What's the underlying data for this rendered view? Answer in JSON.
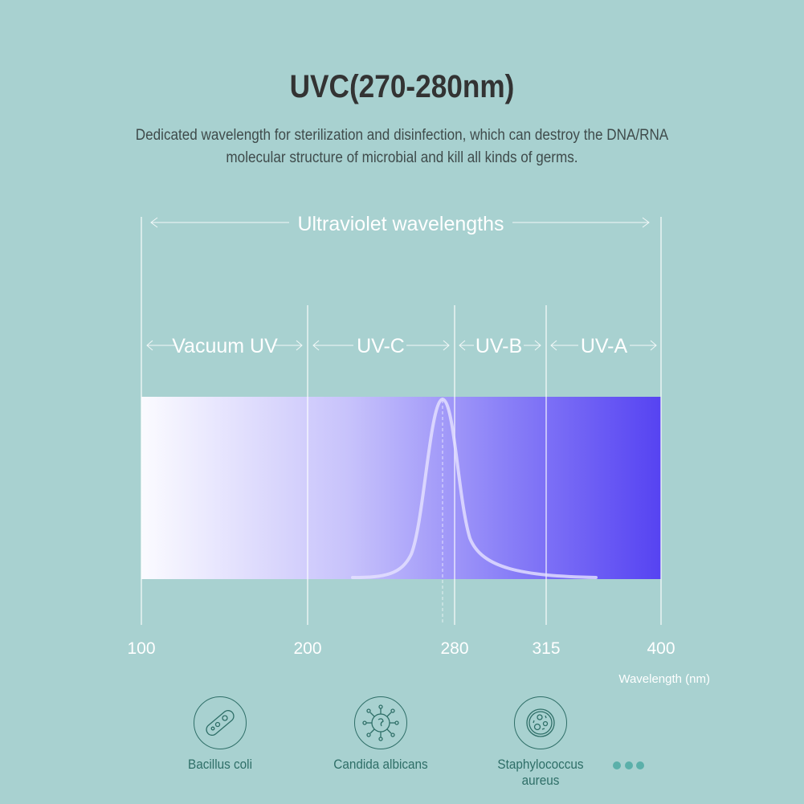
{
  "title": "UVC(270-280nm)",
  "description": "Dedicated wavelength for sterilization and disinfection, which can destroy the DNA/RNA molecular structure of microbial and kill all kinds of germs.",
  "diagram": {
    "range_label": "Ultraviolet wavelengths",
    "bands": [
      {
        "label": "Vacuum UV"
      },
      {
        "label": "UV-C"
      },
      {
        "label": "UV-B"
      },
      {
        "label": "UV-A"
      }
    ],
    "ticks": [
      "100",
      "200",
      "280",
      "315",
      "400"
    ],
    "axis_label": "Wavelength (nm)",
    "peak_nm": 275,
    "gradient_colors": [
      "#fbfbff",
      "#c7c2fb",
      "#8a80f7",
      "#5643f2"
    ]
  },
  "germs": [
    {
      "label": "Bacillus coli",
      "icon": "bacillus-icon"
    },
    {
      "label": "Candida albicans",
      "icon": "virus-icon"
    },
    {
      "label": "Staphylococcus aureus",
      "icon": "cell-icon"
    }
  ],
  "more_icon": "ellipsis-icon",
  "colors": {
    "background": "#a8d1d0",
    "accent": "#2e6e67"
  }
}
